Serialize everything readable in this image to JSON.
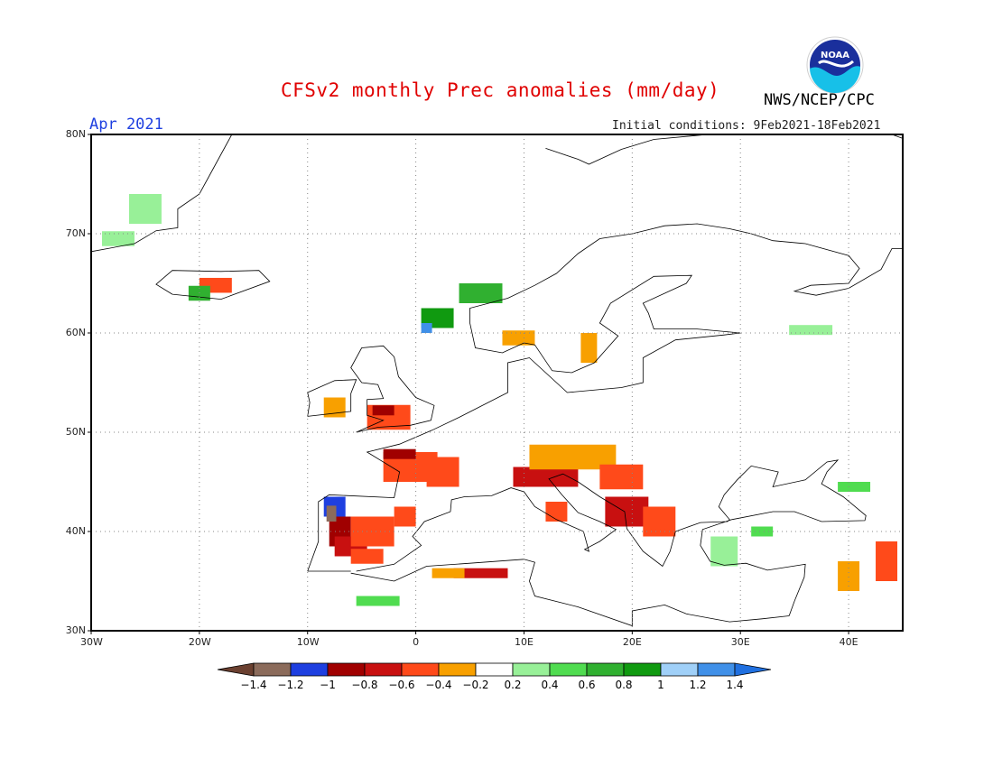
{
  "title": "CFSv2 monthly Prec anomalies (mm/day)",
  "month_label": "Apr 2021",
  "init_label": "Initial conditions: 9Feb2021-18Feb2021",
  "agency": "NWS/NCEP/CPC",
  "logo_text": "NOAA",
  "map": {
    "lon_range": [
      -30,
      45
    ],
    "lat_range": [
      30,
      80
    ],
    "lon_ticks": [
      "30W",
      "20W",
      "10W",
      "0",
      "10E",
      "20E",
      "30E",
      "40E"
    ],
    "lat_ticks": [
      "80N",
      "70N",
      "60N",
      "50N",
      "40N",
      "30N"
    ],
    "grid": true
  },
  "legend": {
    "labels": [
      "-1.4",
      "-1.2",
      "-1",
      "-0.8",
      "-0.6",
      "-0.4",
      "-0.2",
      "0.2",
      "0.4",
      "0.6",
      "0.8",
      "1",
      "1.2",
      "1.4"
    ],
    "colors": [
      "#8b6b5b",
      "#1e3fe0",
      "#a00000",
      "#c81010",
      "#ff4a1a",
      "#f8a000",
      "#ffffff",
      "#98f098",
      "#50dc50",
      "#30b030",
      "#109a10",
      "#a0d0f8",
      "#4090e8"
    ],
    "low_arrow_color": "#6b4030",
    "high_arrow_color": "#2070e0"
  },
  "anomaly_cells": [
    {
      "lon": -7.5,
      "lat": 42.5,
      "w": 2,
      "h": 2,
      "v": -1.1
    },
    {
      "lon": -7.0,
      "lat": 40.0,
      "w": 2,
      "h": 3,
      "v": -0.9
    },
    {
      "lon": -6.0,
      "lat": 38.5,
      "w": 3,
      "h": 2,
      "v": -0.7
    },
    {
      "lon": -4.0,
      "lat": 40.0,
      "w": 4,
      "h": 3,
      "v": -0.45
    },
    {
      "lon": -4.5,
      "lat": 37.5,
      "w": 3,
      "h": 1.5,
      "v": -0.5
    },
    {
      "lon": -7.8,
      "lat": 41.8,
      "w": 0.9,
      "h": 1.6,
      "v": -1.3
    },
    {
      "lon": -1.0,
      "lat": 41.5,
      "w": 2,
      "h": 2,
      "v": -0.45
    },
    {
      "lon": -0.5,
      "lat": 46.5,
      "w": 5,
      "h": 3,
      "v": -0.6
    },
    {
      "lon": -1.5,
      "lat": 47.8,
      "w": 3,
      "h": 1,
      "v": -0.9
    },
    {
      "lon": 2.5,
      "lat": 46.0,
      "w": 3,
      "h": 3,
      "v": -0.45
    },
    {
      "lon": -2.5,
      "lat": 51.5,
      "w": 4,
      "h": 2.5,
      "v": -0.55
    },
    {
      "lon": -3.0,
      "lat": 52.2,
      "w": 2,
      "h": 1,
      "v": -0.85
    },
    {
      "lon": -7.5,
      "lat": 52.5,
      "w": 2,
      "h": 2,
      "v": -0.35
    },
    {
      "lon": 12.0,
      "lat": 45.5,
      "w": 6,
      "h": 2,
      "v": -0.75
    },
    {
      "lon": 14.5,
      "lat": 47.5,
      "w": 8,
      "h": 2.5,
      "v": -0.4
    },
    {
      "lon": 19.0,
      "lat": 45.5,
      "w": 4,
      "h": 2.5,
      "v": -0.55
    },
    {
      "lon": 19.5,
      "lat": 42.0,
      "w": 4,
      "h": 3,
      "v": -0.8
    },
    {
      "lon": 22.5,
      "lat": 41.0,
      "w": 3,
      "h": 3,
      "v": -0.5
    },
    {
      "lon": 13.0,
      "lat": 42.0,
      "w": 2,
      "h": 2,
      "v": -0.6
    },
    {
      "lon": 6.0,
      "lat": 35.8,
      "w": 5,
      "h": 1,
      "v": -0.7
    },
    {
      "lon": 3.0,
      "lat": 35.8,
      "w": 3,
      "h": 1,
      "v": -0.4
    },
    {
      "lon": -18.5,
      "lat": 64.8,
      "w": 3,
      "h": 1.5,
      "v": -0.55
    },
    {
      "lon": 9.5,
      "lat": 59.5,
      "w": 3,
      "h": 1.5,
      "v": -0.4
    },
    {
      "lon": 16.0,
      "lat": 58.5,
      "w": 1.5,
      "h": 3,
      "v": -0.4
    },
    {
      "lon": 40.0,
      "lat": 35.5,
      "w": 2,
      "h": 3,
      "v": -0.4
    },
    {
      "lon": 43.5,
      "lat": 37.0,
      "w": 2,
      "h": 4,
      "v": -0.5
    },
    {
      "lon": 6.0,
      "lat": 64.0,
      "w": 4,
      "h": 2,
      "v": 0.6
    },
    {
      "lon": 2.0,
      "lat": 61.5,
      "w": 3,
      "h": 2,
      "v": 0.8
    },
    {
      "lon": 1.0,
      "lat": 60.5,
      "w": 1,
      "h": 1,
      "v": 1.2
    },
    {
      "lon": -20.0,
      "lat": 64.0,
      "w": 2,
      "h": 1.5,
      "v": 0.7
    },
    {
      "lon": -25.0,
      "lat": 72.5,
      "w": 3,
      "h": 3,
      "v": 0.35
    },
    {
      "lon": -27.5,
      "lat": 69.5,
      "w": 3,
      "h": 1.5,
      "v": 0.3
    },
    {
      "lon": 32.0,
      "lat": 40.0,
      "w": 2,
      "h": 1,
      "v": 0.4
    },
    {
      "lon": 28.5,
      "lat": 38.0,
      "w": 2.5,
      "h": 3,
      "v": 0.3
    },
    {
      "lon": -3.5,
      "lat": 33.0,
      "w": 4,
      "h": 1,
      "v": 0.45
    },
    {
      "lon": 36.5,
      "lat": 60.3,
      "w": 4,
      "h": 1,
      "v": 0.3
    },
    {
      "lon": 40.5,
      "lat": 44.5,
      "w": 3,
      "h": 1,
      "v": 0.4
    }
  ]
}
